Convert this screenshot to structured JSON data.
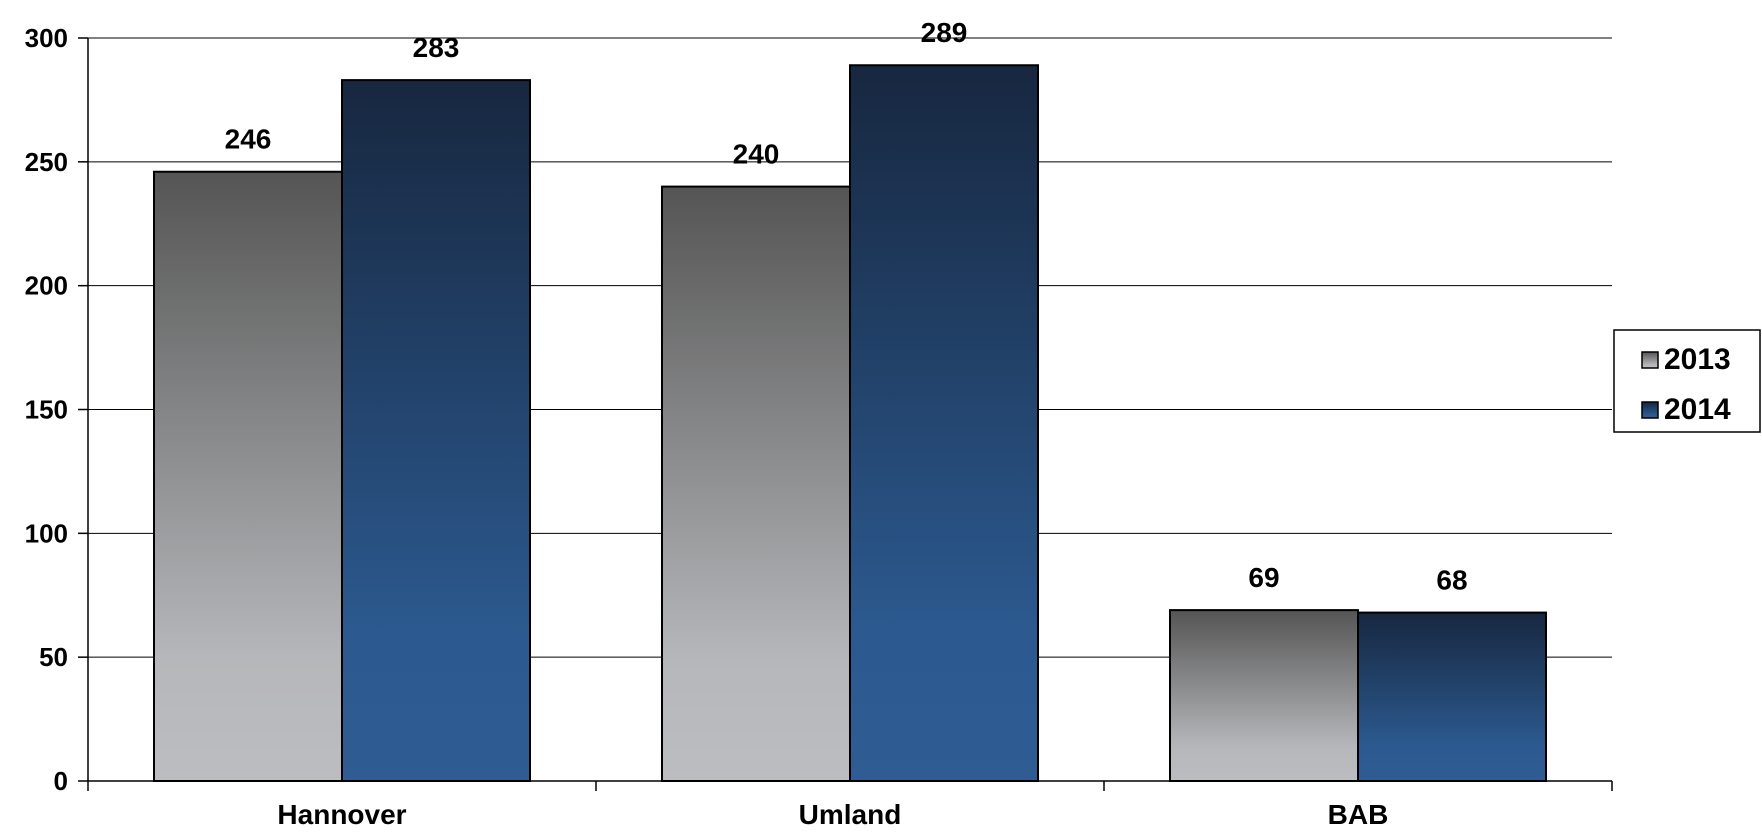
{
  "chart_data": {
    "type": "bar",
    "categories": [
      "Hannover",
      "Umland",
      "BAB"
    ],
    "series": [
      {
        "name": "2013",
        "values": [
          246,
          240,
          69
        ],
        "color": "#6b6b6b"
      },
      {
        "name": "2014",
        "values": [
          283,
          289,
          68
        ],
        "color": "#1f3d63"
      }
    ],
    "ylim": [
      0,
      300
    ],
    "yticks": [
      0,
      50,
      100,
      150,
      200,
      250,
      300
    ],
    "grid": true,
    "legend": "right",
    "title": "",
    "xlabel": "",
    "ylabel": ""
  }
}
